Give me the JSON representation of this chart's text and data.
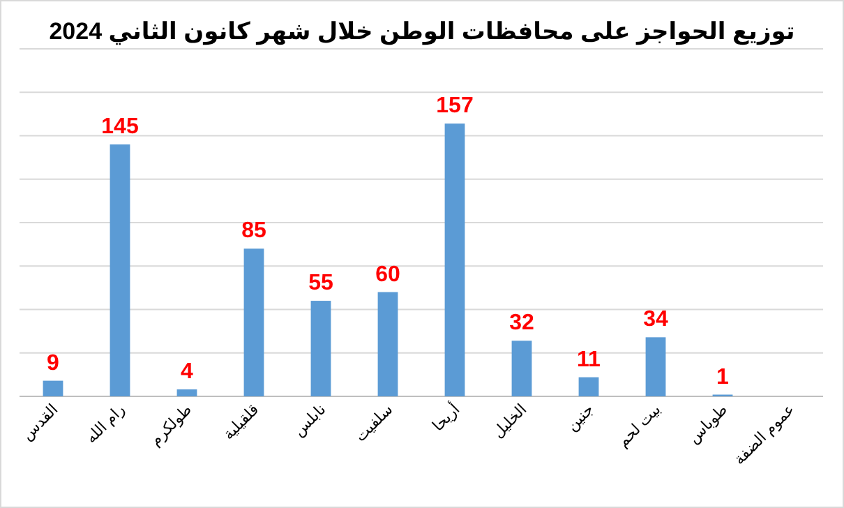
{
  "chart_data": {
    "type": "bar",
    "title": "توزيع  الحواجز على محافظات الوطن خلال شهر كانون الثاني 2024",
    "categories": [
      "القدس",
      "رام الله",
      "طولكرم",
      "قلقيلية",
      "نابلس",
      "سلفيت",
      "أريحا",
      "الخليل",
      "جنين",
      "بيت لحم",
      "طوباس",
      "عموم  الضفة"
    ],
    "values": [
      9,
      145,
      4,
      85,
      55,
      60,
      157,
      32,
      11,
      34,
      1,
      null
    ],
    "color": "#5b9bd5",
    "ylim": [
      0,
      200
    ],
    "yticks": [
      {
        "value": 0,
        "label": null
      },
      {
        "value": 25,
        "label": null
      },
      {
        "value": 50,
        "label": null
      },
      {
        "value": 75,
        "label": null
      },
      {
        "value": 100,
        "label": null
      },
      {
        "value": 125,
        "label": null
      },
      {
        "value": 150,
        "label": null
      },
      {
        "value": 175,
        "label": null
      },
      {
        "value": 200,
        "label": null
      }
    ],
    "grid": "y",
    "tick_labels": "x",
    "data_labels": true
  }
}
